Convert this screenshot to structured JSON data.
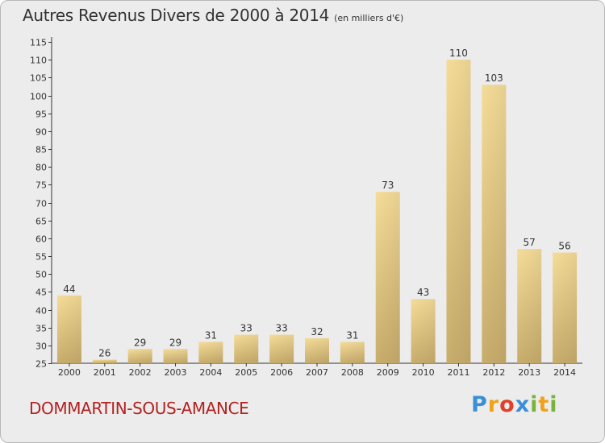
{
  "header": {
    "title": "Autres Revenus Divers de 2000 à 2014",
    "unit_note": "(en milliers d'€)"
  },
  "footer": {
    "place": "DOMMARTIN-SOUS-AMANCE"
  },
  "logo": {
    "text": "Proxiti",
    "letters": [
      {
        "char": "P",
        "color": "#3a8fd6"
      },
      {
        "char": "r",
        "color": "#f0a21a"
      },
      {
        "char": "o",
        "color": "#e0402a"
      },
      {
        "char": "x",
        "color": "#3a8fd6"
      },
      {
        "char": "i",
        "color": "#79b43a"
      },
      {
        "char": "t",
        "color": "#f0a21a"
      },
      {
        "char": "i",
        "color": "#79b43a"
      }
    ]
  },
  "chart_data": {
    "type": "bar",
    "title": "Autres Revenus Divers de 2000 à 2014",
    "xlabel": "",
    "ylabel": "",
    "categories": [
      "2000",
      "2001",
      "2002",
      "2003",
      "2004",
      "2005",
      "2006",
      "2007",
      "2008",
      "2009",
      "2010",
      "2011",
      "2012",
      "2013",
      "2014"
    ],
    "values": [
      44,
      26,
      29,
      29,
      31,
      33,
      33,
      32,
      31,
      73,
      43,
      110,
      103,
      57,
      56
    ],
    "ylim": [
      25,
      115
    ],
    "yticks": [
      25,
      30,
      35,
      40,
      45,
      50,
      55,
      60,
      65,
      70,
      75,
      80,
      85,
      90,
      95,
      100,
      105,
      110,
      115
    ],
    "grid": false,
    "bar_color": "#e8cf86"
  }
}
